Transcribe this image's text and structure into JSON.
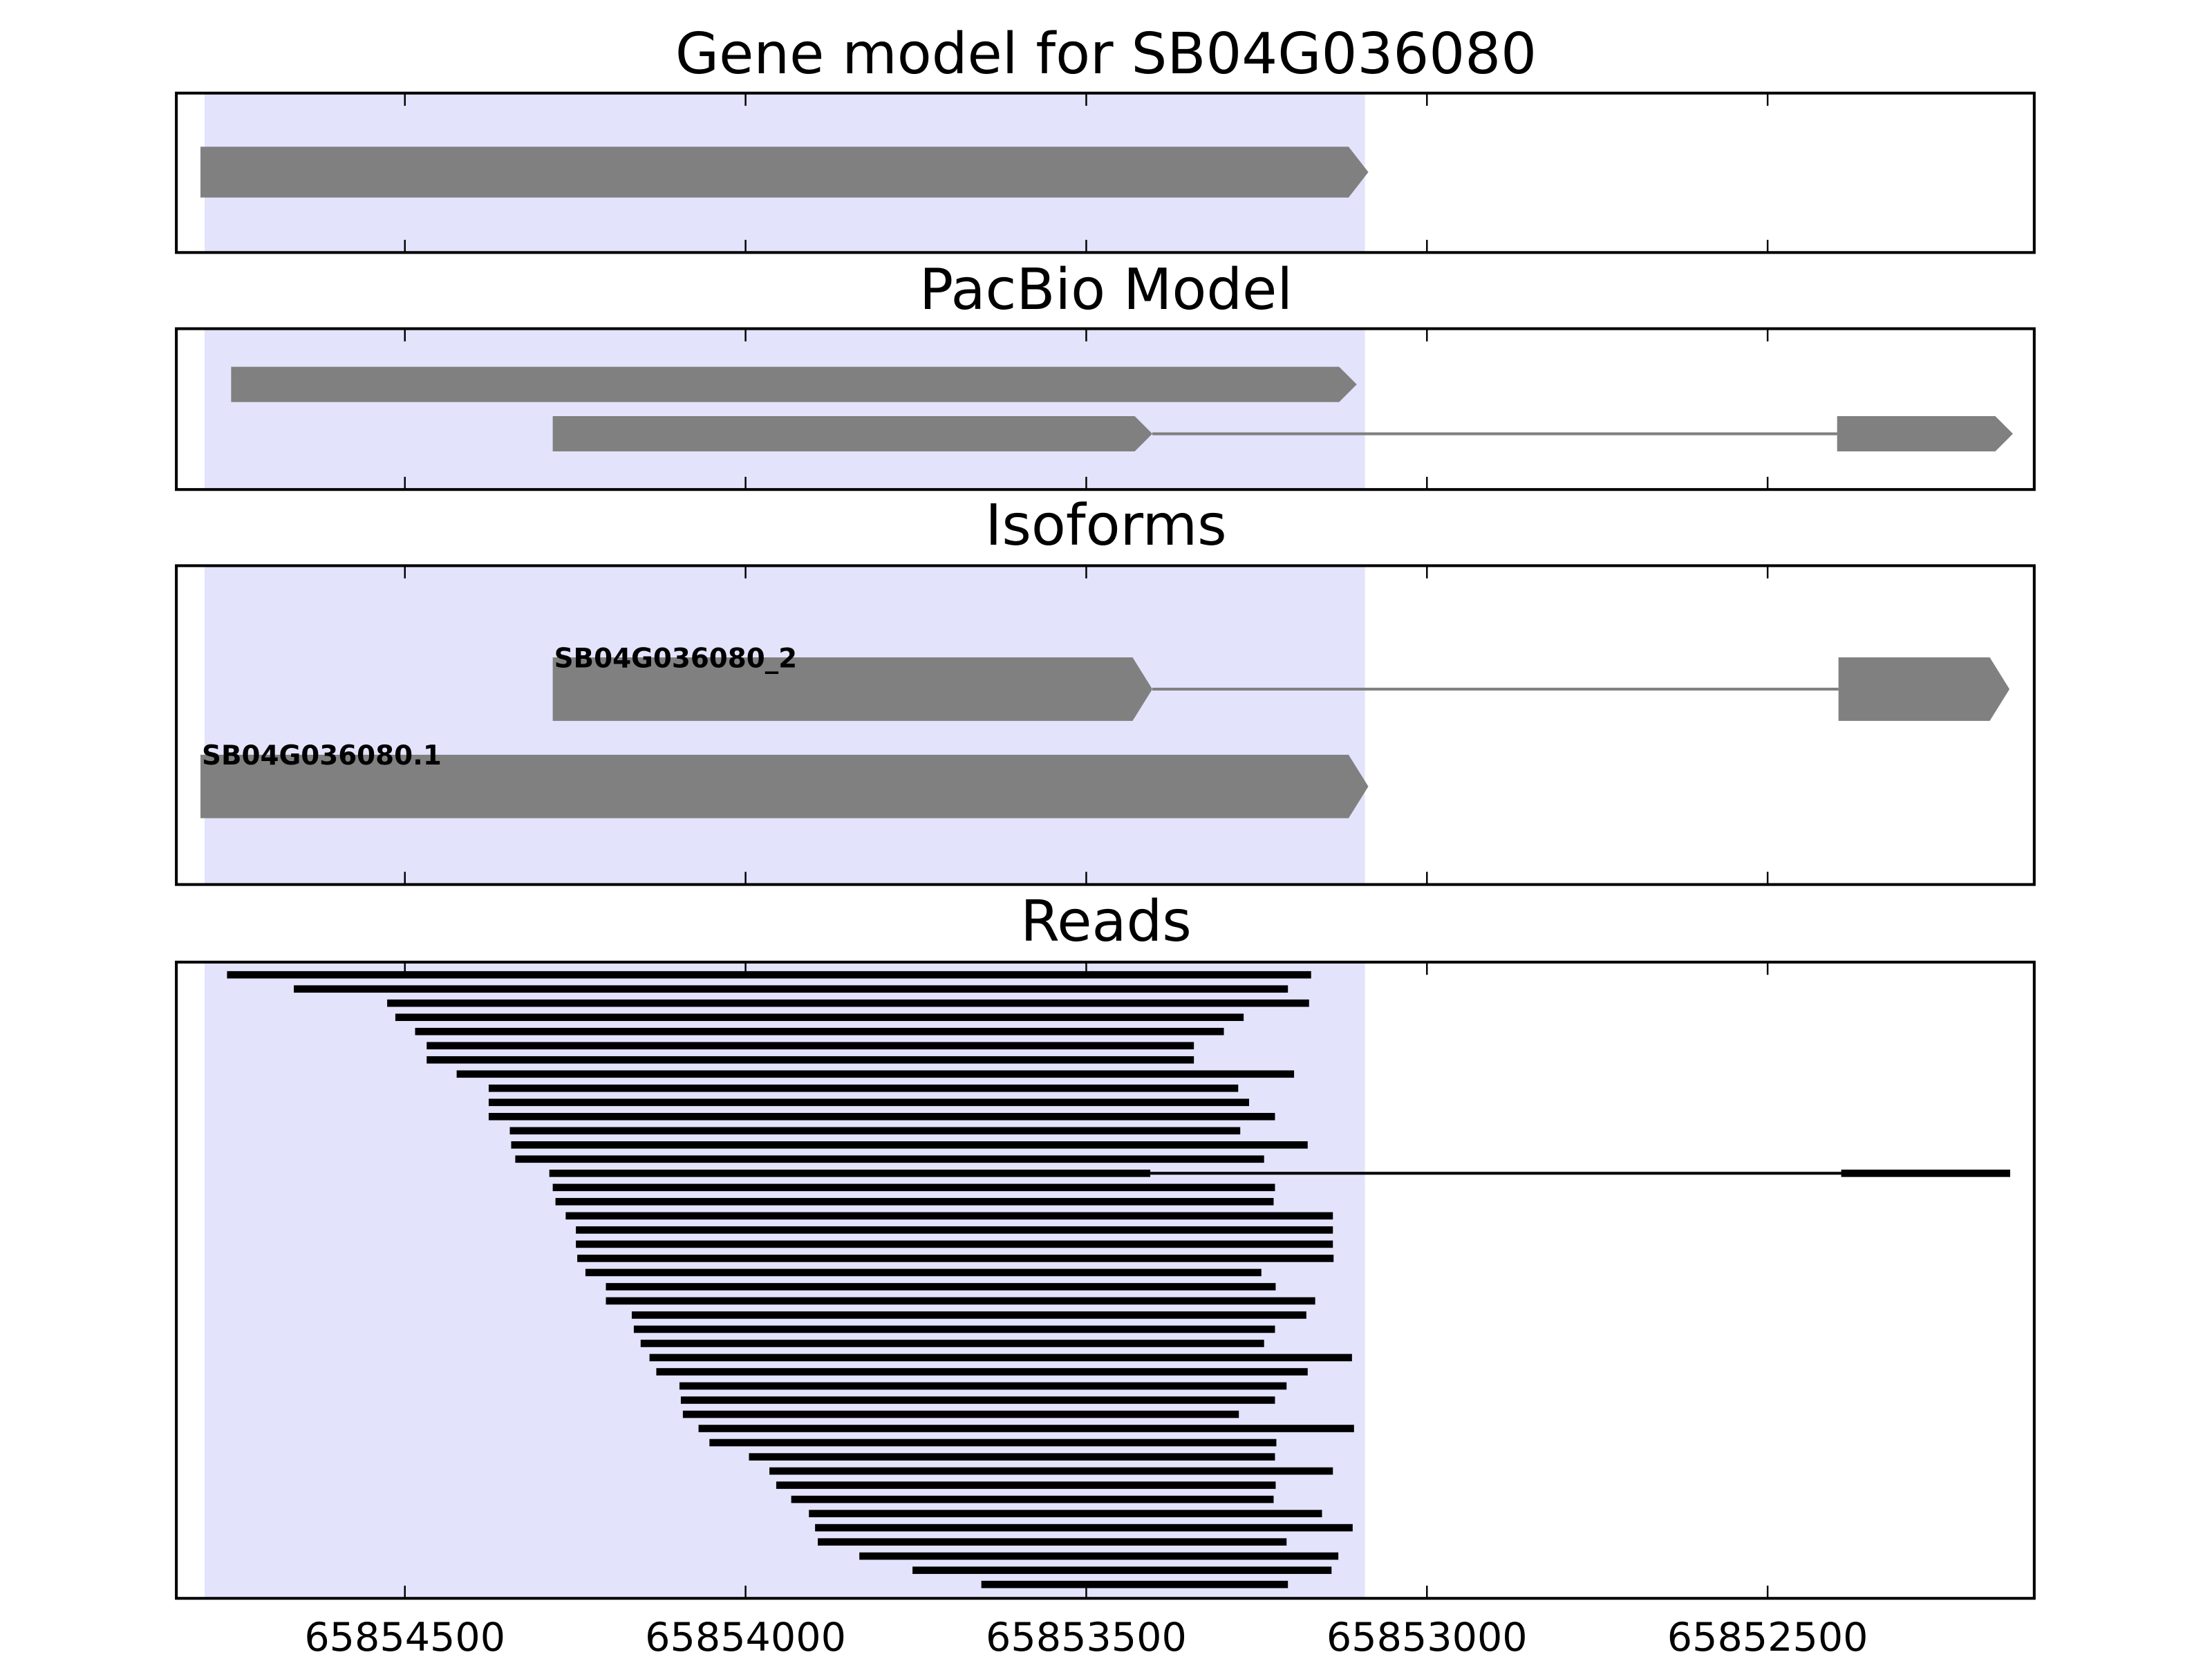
{
  "chart_data": [
    {
      "type": "bar",
      "title": "Gene model for SB04G036080",
      "xlim": [
        65854835,
        65852110
      ],
      "x_reversed": true,
      "highlight_region": [
        65854794,
        65853091
      ],
      "features": [
        {
          "blocks": [
            [
              65854800,
              65853086
            ]
          ],
          "strand": "-"
        }
      ]
    },
    {
      "type": "bar",
      "title": "PacBio Model",
      "xlim": [
        65854835,
        65852110
      ],
      "highlight_region": [
        65854794,
        65853091
      ],
      "features": [
        {
          "blocks": [
            [
              65854755,
              65853103
            ]
          ],
          "strand": "-"
        },
        {
          "blocks": [
            [
              65854283,
              65853403
            ],
            [
              65852398,
              65852140
            ]
          ],
          "strand": "-"
        }
      ]
    },
    {
      "type": "bar",
      "title": "Isoforms",
      "xlim": [
        65854835,
        65852110
      ],
      "highlight_region": [
        65854794,
        65853091
      ],
      "features": [
        {
          "name": "SB04G036080_2",
          "blocks": [
            [
              65854283,
              65853403
            ],
            [
              65852396,
              65852145
            ]
          ],
          "strand": "-"
        },
        {
          "name": "SB04G036080.1",
          "blocks": [
            [
              65854800,
              65853086
            ]
          ],
          "strand": "-"
        }
      ]
    },
    {
      "type": "bar",
      "title": "Reads",
      "xlim": [
        65854835,
        65852110
      ],
      "highlight_region": [
        65854794,
        65853091
      ],
      "x_ticks": [
        "65854500",
        "65854000",
        "65853500",
        "65853000",
        "65852500"
      ],
      "x_tick_values": [
        65854500,
        65854000,
        65853500,
        65853000,
        65852500
      ],
      "reads": [
        [
          [
            65854761,
            65853170
          ]
        ],
        [
          [
            65854663,
            65853204
          ]
        ],
        [
          [
            65854526,
            65853173
          ]
        ],
        [
          [
            65854514,
            65853269
          ]
        ],
        [
          [
            65854485,
            65853298
          ]
        ],
        [
          [
            65854468,
            65853342
          ]
        ],
        [
          [
            65854468,
            65853342
          ]
        ],
        [
          [
            65854424,
            65853195
          ]
        ],
        [
          [
            65854377,
            65853277
          ]
        ],
        [
          [
            65854377,
            65853261
          ]
        ],
        [
          [
            65854377,
            65853223
          ]
        ],
        [
          [
            65854346,
            65853274
          ]
        ],
        [
          [
            65854344,
            65853175
          ]
        ],
        [
          [
            65854338,
            65853239
          ]
        ],
        [
          [
            65854288,
            65853406
          ],
          [
            65852392,
            65852144
          ]
        ],
        [
          [
            65854283,
            65853223
          ]
        ],
        [
          [
            65854279,
            65853225
          ]
        ],
        [
          [
            65854264,
            65853138
          ]
        ],
        [
          [
            65854249,
            65853138
          ]
        ],
        [
          [
            65854249,
            65853138
          ]
        ],
        [
          [
            65854247,
            65853137
          ]
        ],
        [
          [
            65854235,
            65853243
          ]
        ],
        [
          [
            65854205,
            65853222
          ]
        ],
        [
          [
            65854205,
            65853164
          ]
        ],
        [
          [
            65854167,
            65853177
          ]
        ],
        [
          [
            65854164,
            65853223
          ]
        ],
        [
          [
            65854154,
            65853239
          ]
        ],
        [
          [
            65854141,
            65853110
          ]
        ],
        [
          [
            65854131,
            65853175
          ]
        ],
        [
          [
            65854097,
            65853206
          ]
        ],
        [
          [
            65854095,
            65853223
          ]
        ],
        [
          [
            65854092,
            65853276
          ]
        ],
        [
          [
            65854069,
            65853107
          ]
        ],
        [
          [
            65854053,
            65853221
          ]
        ],
        [
          [
            65853995,
            65853223
          ]
        ],
        [
          [
            65853965,
            65853138
          ]
        ],
        [
          [
            65853955,
            65853222
          ]
        ],
        [
          [
            65853933,
            65853225
          ]
        ],
        [
          [
            65853907,
            65853154
          ]
        ],
        [
          [
            65853898,
            65853109
          ]
        ],
        [
          [
            65853894,
            65853206
          ]
        ],
        [
          [
            65853833,
            65853130
          ]
        ],
        [
          [
            65853755,
            65853140
          ]
        ],
        [
          [
            65853654,
            65853204
          ]
        ]
      ]
    }
  ],
  "colors": {
    "highlight": "#e3e3fc",
    "feature": "#808080",
    "read": "#000000"
  }
}
